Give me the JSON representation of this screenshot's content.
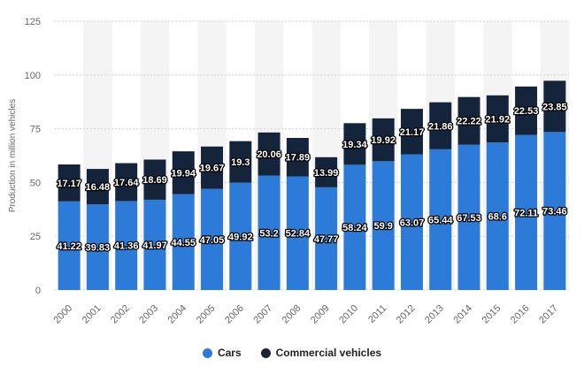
{
  "chart_data": {
    "type": "bar",
    "stacked": true,
    "categories": [
      "2000",
      "2001",
      "2002",
      "2003",
      "2004",
      "2005",
      "2006",
      "2007",
      "2008",
      "2009",
      "2010",
      "2011",
      "2012",
      "2013",
      "2014",
      "2015",
      "2016",
      "2017"
    ],
    "series": [
      {
        "name": "Cars",
        "color": "#2d7bd8",
        "values": [
          41.22,
          39.83,
          41.36,
          41.97,
          44.55,
          47.05,
          49.92,
          53.2,
          52.84,
          47.77,
          58.24,
          59.9,
          63.07,
          65.44,
          67.53,
          68.6,
          72.11,
          73.46
        ]
      },
      {
        "name": "Commercial vehicles",
        "color": "#14243a",
        "values": [
          17.17,
          16.48,
          17.64,
          18.69,
          19.94,
          19.67,
          19.3,
          20.06,
          17.89,
          13.99,
          19.34,
          19.92,
          21.17,
          21.86,
          22.22,
          21.92,
          22.53,
          23.85
        ]
      }
    ],
    "ylabel": "Production in million vehicles",
    "ylim": [
      0,
      125
    ],
    "yticks": [
      0,
      25,
      50,
      75,
      100,
      125
    ],
    "grid": true,
    "legend_position": "bottom"
  }
}
